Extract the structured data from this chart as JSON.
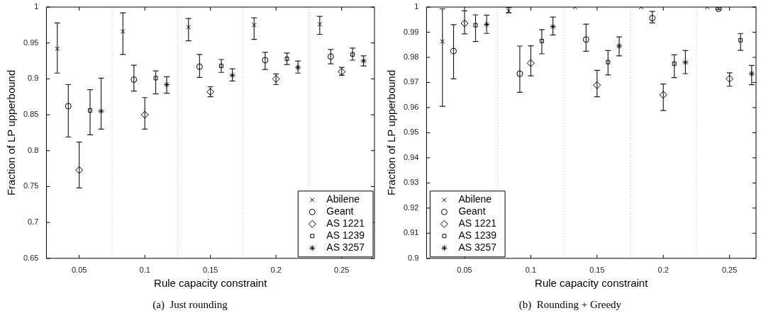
{
  "chart_data": [
    {
      "type": "scatter",
      "xlabel": "Rule capacity constraint",
      "ylabel": "Fraction of LP upperbound",
      "xlim": [
        0.025,
        0.275
      ],
      "xticks": [
        0.05,
        0.1,
        0.15,
        0.2,
        0.25
      ],
      "ylim": [
        0.65,
        1
      ],
      "yticks": [
        0.65,
        0.7,
        0.75,
        0.8,
        0.85,
        0.9,
        0.95,
        1
      ],
      "grid": false,
      "legend": "bottom right",
      "annotations": [
        "(a)  Just rounding"
      ],
      "ref_lines": [
        {
          "axis": "x",
          "value": 0.075,
          "color": "#bbbbbb",
          "line_style": "dotted"
        },
        {
          "axis": "x",
          "value": 0.125,
          "color": "#bbbbbb",
          "line_style": "dotted"
        },
        {
          "axis": "x",
          "value": 0.175,
          "color": "#bbbbbb",
          "line_style": "dotted"
        },
        {
          "axis": "x",
          "value": 0.225,
          "color": "#bbbbbb",
          "line_style": "dotted"
        }
      ],
      "series": [
        {
          "name": "Abilene",
          "color": "#000000",
          "marker": "cross",
          "x": [
            0.0333,
            0.0833,
            0.1333,
            0.1833,
            0.2333
          ],
          "values": [
            0.942,
            0.966,
            0.972,
            0.975,
            0.976
          ],
          "errors": [
            [
              0.908,
              0.978
            ],
            [
              0.934,
              0.992
            ],
            [
              0.953,
              0.984
            ],
            [
              0.955,
              0.985
            ],
            [
              0.962,
              0.987
            ]
          ]
        },
        {
          "name": "Geant",
          "color": "#000000",
          "marker": "circle",
          "x": [
            0.0417,
            0.0917,
            0.1417,
            0.1917,
            0.2417
          ],
          "values": [
            0.862,
            0.899,
            0.917,
            0.926,
            0.931
          ],
          "errors": [
            [
              0.819,
              0.892
            ],
            [
              0.883,
              0.919
            ],
            [
              0.902,
              0.934
            ],
            [
              0.913,
              0.937
            ],
            [
              0.921,
              0.941
            ]
          ]
        },
        {
          "name": "AS 1221",
          "color": "#000000",
          "marker": "diamond",
          "x": [
            0.05,
            0.1,
            0.15,
            0.2,
            0.25
          ],
          "values": [
            0.773,
            0.85,
            0.882,
            0.9,
            0.91
          ],
          "errors": [
            [
              0.748,
              0.812
            ],
            [
              0.83,
              0.874
            ],
            [
              0.875,
              0.889
            ],
            [
              0.892,
              0.907
            ],
            [
              0.905,
              0.916
            ]
          ]
        },
        {
          "name": "AS 1239",
          "color": "#000000",
          "marker": "square",
          "x": [
            0.0583,
            0.1083,
            0.1583,
            0.2083,
            0.2583
          ],
          "values": [
            0.856,
            0.901,
            0.918,
            0.928,
            0.934
          ],
          "errors": [
            [
              0.822,
              0.885
            ],
            [
              0.879,
              0.911
            ],
            [
              0.909,
              0.927
            ],
            [
              0.92,
              0.936
            ],
            [
              0.926,
              0.943
            ]
          ]
        },
        {
          "name": "AS 3257",
          "color": "#000000",
          "x": [
            0.0667,
            0.1167,
            0.1667,
            0.2167,
            0.2667
          ],
          "values": [
            0.855,
            0.892,
            0.905,
            0.916,
            0.925
          ],
          "errors": [
            [
              0.83,
              0.901
            ],
            [
              0.88,
              0.903
            ],
            [
              0.897,
              0.914
            ],
            [
              0.908,
              0.925
            ],
            [
              0.918,
              0.932
            ]
          ]
        }
      ]
    },
    {
      "type": "scatter",
      "xlabel": "Rule capacity constraint",
      "ylabel": "Fraction of LP upperbound",
      "xlim": [
        0.0213,
        0.27
      ],
      "xticks": [
        0.05,
        0.1,
        0.15,
        0.2,
        0.25
      ],
      "ylim": [
        0.9,
        1
      ],
      "yticks": [
        0.9,
        0.91,
        0.92,
        0.93,
        0.94,
        0.95,
        0.96,
        0.97,
        0.98,
        0.99,
        1
      ],
      "grid": false,
      "legend": "bottom left",
      "annotations": [
        "(b)  Rounding + Greedy"
      ],
      "ref_lines": [
        {
          "axis": "x",
          "value": 0.075,
          "color": "#bbbbbb",
          "line_style": "dotted"
        },
        {
          "axis": "x",
          "value": 0.125,
          "color": "#bbbbbb",
          "line_style": "dotted"
        },
        {
          "axis": "x",
          "value": 0.175,
          "color": "#bbbbbb",
          "line_style": "dotted"
        },
        {
          "axis": "x",
          "value": 0.225,
          "color": "#bbbbbb",
          "line_style": "dotted"
        }
      ],
      "series": [
        {
          "name": "Abilene",
          "color": "#000000",
          "marker": "cross",
          "x": [
            0.0333,
            0.0833,
            0.1333,
            0.1833,
            0.2333
          ],
          "values": [
            0.9863,
            0.9985,
            1,
            1,
            1
          ],
          "errors": [
            [
              0.9605,
              0.9993
            ],
            [
              0.9977,
              0.9998
            ],
            null,
            null,
            null
          ]
        },
        {
          "name": "Geant",
          "color": "#000000",
          "marker": "circle",
          "x": [
            0.0417,
            0.0917,
            0.1417,
            0.1917,
            0.2417
          ],
          "values": [
            0.9825,
            0.9735,
            0.9871,
            0.9956,
            0.9993
          ],
          "errors": [
            [
              0.9714,
              0.993
            ],
            [
              0.9661,
              0.9845
            ],
            [
              0.9824,
              0.9932
            ],
            [
              0.9937,
              0.9983
            ],
            [
              0.999,
              0.9997
            ]
          ]
        },
        {
          "name": "AS 1221",
          "color": "#000000",
          "marker": "diamond",
          "x": [
            0.05,
            0.1,
            0.15,
            0.2,
            0.25
          ],
          "values": [
            0.9935,
            0.9777,
            0.9689,
            0.9651,
            0.9715
          ],
          "errors": [
            [
              0.9893,
              0.9985
            ],
            [
              0.9726,
              0.9846
            ],
            [
              0.9643,
              0.9748
            ],
            [
              0.9588,
              0.9694
            ],
            [
              0.9685,
              0.9738
            ]
          ]
        },
        {
          "name": "AS 1239",
          "color": "#000000",
          "marker": "square",
          "x": [
            0.0583,
            0.1083,
            0.1583,
            0.2083,
            0.2583
          ],
          "values": [
            0.9928,
            0.9865,
            0.9781,
            0.9775,
            0.9868
          ],
          "errors": [
            [
              0.9863,
              0.9969
            ],
            [
              0.9814,
              0.991
            ],
            [
              0.973,
              0.9827
            ],
            [
              0.9719,
              0.981
            ],
            [
              0.9828,
              0.9895
            ]
          ]
        },
        {
          "name": "AS 3257",
          "color": "#000000",
          "x": [
            0.0667,
            0.1167,
            0.1667,
            0.2167,
            0.2667
          ],
          "values": [
            0.9931,
            0.9922,
            0.9845,
            0.978,
            0.9735
          ],
          "errors": [
            [
              0.9895,
              0.9968
            ],
            [
              0.9889,
              0.996
            ],
            [
              0.9806,
              0.9881
            ],
            [
              0.9735,
              0.9827
            ],
            [
              0.9691,
              0.9768
            ]
          ]
        }
      ]
    }
  ]
}
